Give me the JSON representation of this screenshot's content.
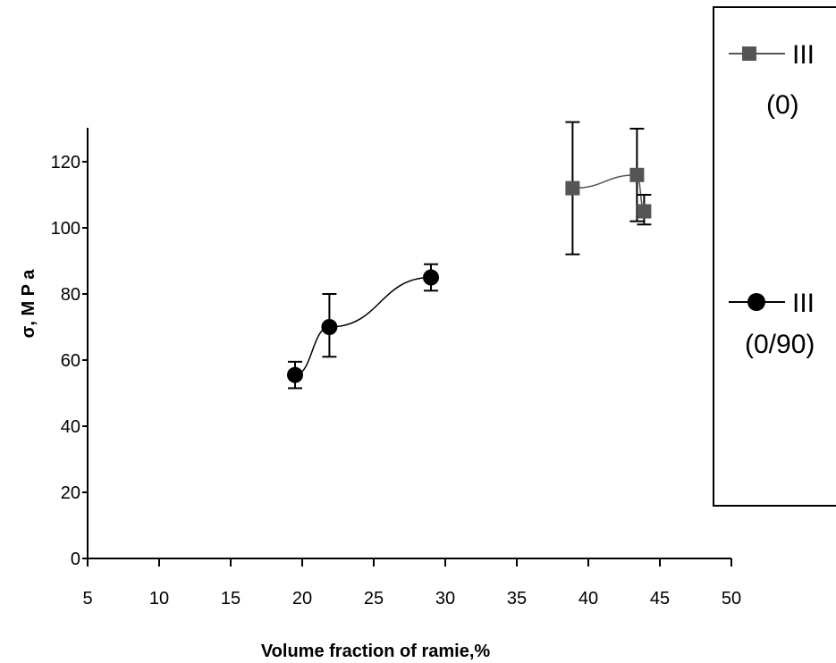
{
  "chart_data": {
    "type": "scatter",
    "xlabel": "Volume fraction of ramie,%",
    "ylabel": "σ, M P a",
    "xlim": [
      5,
      50
    ],
    "ylim": [
      0,
      130
    ],
    "x_ticks": [
      5,
      10,
      15,
      20,
      25,
      30,
      35,
      40,
      45,
      50
    ],
    "y_ticks": [
      0,
      20,
      40,
      60,
      80,
      100,
      120
    ],
    "grid": false,
    "legend_position": "right",
    "series": [
      {
        "name": "III (0)",
        "name_line1": "III",
        "name_line2": "(0)",
        "marker": "square",
        "color": "#555555",
        "points": [
          {
            "x": 38.9,
            "y": 112,
            "err_low": 92,
            "err_high": 132
          },
          {
            "x": 43.4,
            "y": 116,
            "err_low": 102,
            "err_high": 130
          },
          {
            "x": 43.9,
            "y": 105,
            "err_low": 101,
            "err_high": 110
          }
        ]
      },
      {
        "name": "III (0/90)",
        "name_line1": "III",
        "name_line2": "(0/90)",
        "marker": "circle",
        "color": "#000000",
        "points": [
          {
            "x": 19.5,
            "y": 55.5,
            "err_low": 51.5,
            "err_high": 59.5
          },
          {
            "x": 21.9,
            "y": 70,
            "err_low": 61,
            "err_high": 80
          },
          {
            "x": 29,
            "y": 85,
            "err_low": 81,
            "err_high": 89
          }
        ]
      }
    ]
  }
}
